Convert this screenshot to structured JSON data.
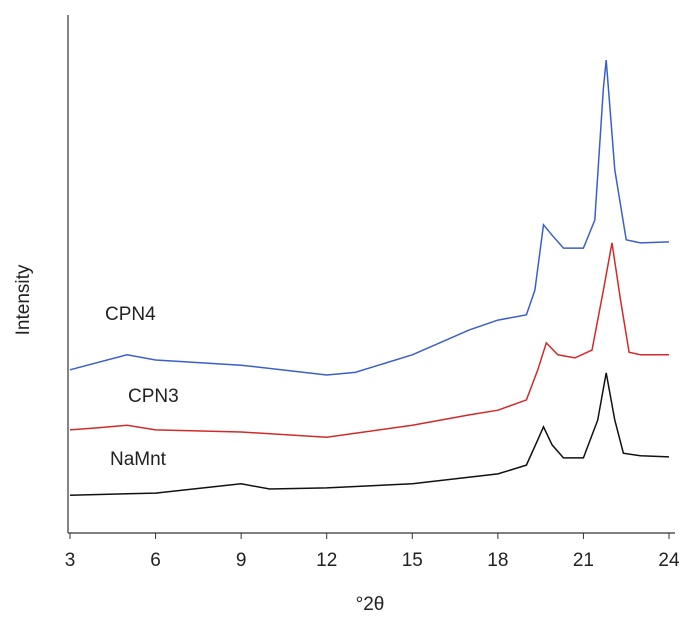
{
  "chart_data": {
    "type": "line",
    "xlabel": "°2θ",
    "ylabel": "Intensity",
    "xlim": [
      3,
      24
    ],
    "xticks": [
      3,
      6,
      9,
      12,
      15,
      18,
      21,
      24
    ],
    "ylim": [
      0,
      100
    ],
    "series": [
      {
        "name": "NaMnt",
        "color": "#111111",
        "x": [
          3,
          6,
          8,
          9,
          10,
          12,
          15,
          18,
          19,
          19.4,
          19.6,
          19.9,
          20.3,
          21,
          21.5,
          21.8,
          22.1,
          22.4,
          23,
          24
        ],
        "values": [
          7.3,
          7.7,
          8.9,
          9.5,
          8.5,
          8.7,
          9.5,
          11.4,
          13.1,
          18,
          20.5,
          17,
          14.5,
          14.5,
          21.8,
          30.9,
          21.8,
          15.4,
          14.9,
          14.7
        ]
      },
      {
        "name": "CPN3",
        "color": "#d22a2a",
        "x": [
          3,
          4,
          5,
          6,
          9,
          12,
          15,
          17,
          18,
          19,
          19.4,
          19.7,
          20.1,
          20.7,
          21.3,
          21.7,
          22,
          22.3,
          22.6,
          23,
          24
        ],
        "values": [
          19.9,
          20.3,
          20.8,
          19.9,
          19.5,
          18.5,
          20.8,
          22.8,
          23.7,
          25.7,
          31.5,
          36.7,
          34.4,
          33.8,
          35.3,
          46.9,
          56,
          45,
          34.9,
          34.4,
          34.4
        ]
      },
      {
        "name": "CPN4",
        "color": "#3a5fcd",
        "x": [
          3,
          5,
          6,
          9,
          12,
          13,
          15,
          17,
          18,
          19,
          19.3,
          19.6,
          19.9,
          20.3,
          21,
          21.4,
          21.7,
          21.8,
          22.1,
          22.5,
          23,
          24
        ],
        "values": [
          31.5,
          34.4,
          33.4,
          32.4,
          30.5,
          31,
          34.4,
          39.2,
          41.1,
          42.1,
          46.9,
          59.5,
          57.5,
          55,
          55,
          60.4,
          85.9,
          91.3,
          70.1,
          56.6,
          56,
          56.2
        ]
      }
    ]
  }
}
